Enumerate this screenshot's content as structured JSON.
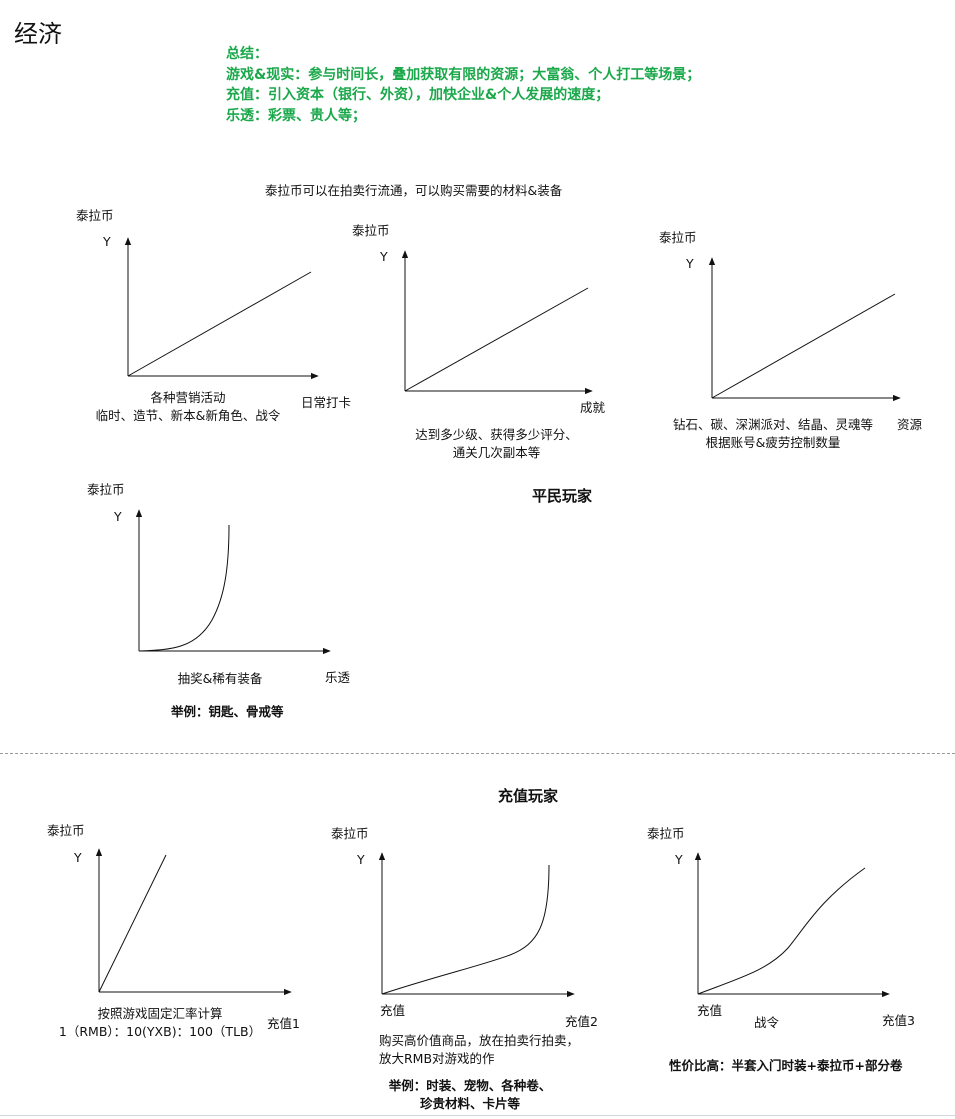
{
  "page": {
    "title": "经济",
    "summary": {
      "heading": "总结：",
      "lines": [
        "游戏&现实：参与时间长，叠加获取有限的资源；大富翁、个人打工等场景；",
        "充值：引入资本（银行、外资），加快企业&个人发展的速度；",
        "乐透：彩票、贵人等；"
      ]
    },
    "section_note": "泰拉币可以在拍卖行流通，可以购买需要的材料&装备",
    "civilian_header": "平民玩家",
    "paying_header": "充值玩家"
  },
  "charts": [
    {
      "id": "daily",
      "chart_data": {
        "type": "line",
        "curve": "linear",
        "ylabel": "泰拉币",
        "yaxis_letter": "Y",
        "xlabel": "日常打卡"
      },
      "notes": [
        "各种营销活动",
        "临时、造节、新本&新角色、战令"
      ]
    },
    {
      "id": "achievement",
      "chart_data": {
        "type": "line",
        "curve": "linear",
        "ylabel": "泰拉币",
        "yaxis_letter": "Y",
        "xlabel": "成就"
      },
      "notes": [
        "达到多少级、获得多少评分、",
        "通关几次副本等"
      ]
    },
    {
      "id": "resources",
      "chart_data": {
        "type": "line",
        "curve": "linear",
        "ylabel": "泰拉币",
        "yaxis_letter": "Y",
        "xlabel": "资源"
      },
      "notes": [
        "钻石、碳、深渊派对、结晶、灵魂等",
        "根据账号&疲劳控制数量"
      ]
    },
    {
      "id": "lottery",
      "chart_data": {
        "type": "line",
        "curve": "exponential",
        "ylabel": "泰拉币",
        "yaxis_letter": "Y",
        "xlabel": "乐透"
      },
      "notes": [
        "抽奖&稀有装备"
      ],
      "example": "举例：钥匙、骨戒等"
    },
    {
      "id": "recharge1",
      "chart_data": {
        "type": "line",
        "curve": "linear-steep",
        "ylabel": "泰拉币",
        "yaxis_letter": "Y",
        "xlabel": "充值1"
      },
      "notes": [
        "按照游戏固定汇率计算",
        "1（RMB）：10(YXB)：100（TLB）"
      ]
    },
    {
      "id": "recharge2",
      "chart_data": {
        "type": "line",
        "curve": "exponential-late",
        "ylabel": "泰拉币",
        "yaxis_letter": "Y",
        "xlabel": "充值2"
      },
      "origin_label": "充值",
      "notes": [
        "购买高价值商品，放在拍卖行拍卖，",
        "放大RMB对游戏的作"
      ],
      "example": [
        "举例：时装、宠物、各种卷、",
        "珍贵材料、卡片等"
      ]
    },
    {
      "id": "recharge3",
      "chart_data": {
        "type": "line",
        "curve": "s-curve",
        "ylabel": "泰拉币",
        "yaxis_letter": "Y",
        "xlabel": "充值3"
      },
      "origin_label": "充值",
      "notes": [
        "战令"
      ],
      "example": "性价比高：半套入门时装+泰拉币+部分卷"
    }
  ]
}
